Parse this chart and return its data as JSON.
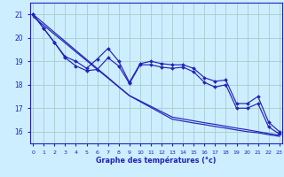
{
  "xlabel": "Graphe des températures (°c)",
  "background_color": "#cceeff",
  "grid_color": "#aacccc",
  "line_color": "#2222bb",
  "hours": [
    0,
    1,
    2,
    3,
    4,
    5,
    6,
    7,
    8,
    9,
    10,
    11,
    12,
    13,
    14,
    15,
    16,
    17,
    18,
    19,
    20,
    21,
    22,
    23
  ],
  "temp_main": [
    21.0,
    20.4,
    19.8,
    19.2,
    19.0,
    18.7,
    19.1,
    19.55,
    19.0,
    18.1,
    18.9,
    19.0,
    18.9,
    18.85,
    18.85,
    18.7,
    18.3,
    18.15,
    18.2,
    17.2,
    17.2,
    17.5,
    16.4,
    16.0
  ],
  "temp_line2": [
    21.0,
    20.4,
    19.8,
    19.15,
    18.8,
    18.6,
    18.65,
    19.15,
    18.8,
    18.05,
    18.85,
    18.85,
    18.75,
    18.7,
    18.75,
    18.55,
    18.1,
    17.9,
    18.0,
    17.0,
    17.0,
    17.2,
    16.2,
    15.9
  ],
  "trend_line1": [
    21.0,
    20.62,
    20.23,
    19.85,
    19.46,
    19.08,
    18.69,
    18.31,
    17.92,
    17.54,
    17.31,
    17.08,
    16.85,
    16.62,
    16.54,
    16.46,
    16.38,
    16.31,
    16.23,
    16.15,
    16.08,
    16.0,
    15.92,
    15.85
  ],
  "trend_line2": [
    20.9,
    20.53,
    20.15,
    19.78,
    19.4,
    19.03,
    18.65,
    18.28,
    17.9,
    17.53,
    17.28,
    17.03,
    16.78,
    16.53,
    16.45,
    16.37,
    16.3,
    16.22,
    16.15,
    16.07,
    16.0,
    15.95,
    15.87,
    15.8
  ],
  "ylim": [
    15.5,
    21.5
  ],
  "yticks": [
    16,
    17,
    18,
    19,
    20,
    21
  ],
  "xlim": [
    -0.3,
    23.3
  ]
}
